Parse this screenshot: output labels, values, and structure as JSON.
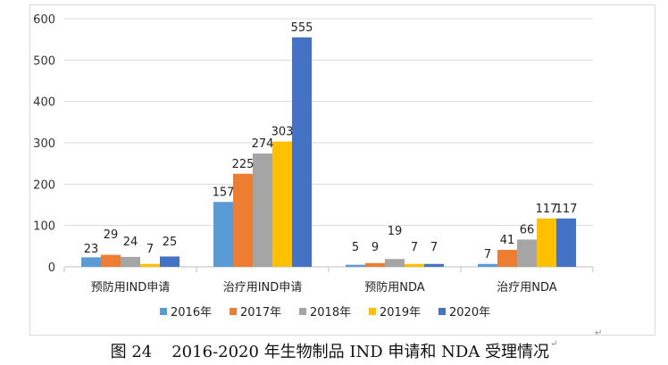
{
  "chart_data": {
    "type": "bar",
    "title": "",
    "xlabel": "",
    "ylabel": "",
    "ylim": [
      0,
      600
    ],
    "yticks": [
      0,
      100,
      200,
      300,
      400,
      500,
      600
    ],
    "grid": true,
    "legend_position": "bottom",
    "categories": [
      "预防用IND申请",
      "治疗用IND申请",
      "预防用NDA",
      "治疗用NDA"
    ],
    "series": [
      {
        "name": "2016年",
        "color": "#5b9bd5",
        "values": [
          23,
          157,
          5,
          7
        ]
      },
      {
        "name": "2017年",
        "color": "#ed7d31",
        "values": [
          29,
          225,
          9,
          41
        ]
      },
      {
        "name": "2018年",
        "color": "#a5a5a5",
        "values": [
          24,
          274,
          19,
          66
        ]
      },
      {
        "name": "2019年",
        "color": "#ffc000",
        "values": [
          7,
          303,
          7,
          117
        ]
      },
      {
        "name": "2020年",
        "color": "#4472c4",
        "values": [
          25,
          555,
          7,
          117
        ]
      }
    ]
  },
  "caption": {
    "label": "图 24",
    "text": "2016-2020 年生物制品 IND 申请和 NDA 受理情况",
    "mark": "↵"
  },
  "stray_mark": "↵"
}
